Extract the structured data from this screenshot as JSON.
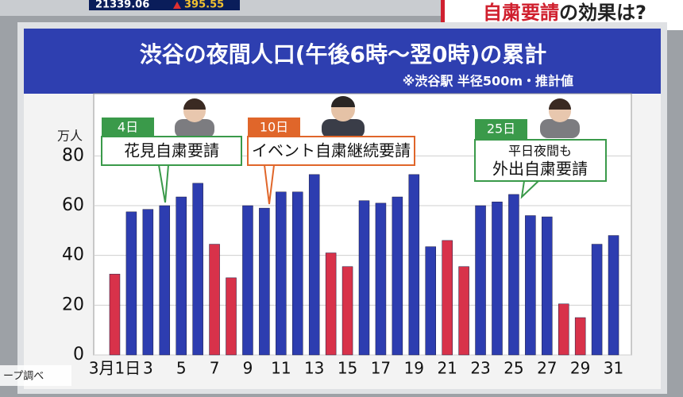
{
  "ticker": {
    "index": "21339.06",
    "change": "395.55"
  },
  "header": {
    "title_highlight": "自粛要請",
    "title_rest": "の効果は?"
  },
  "source": "ープ調べ",
  "chart_data": {
    "type": "bar",
    "title": "渋谷の夜間人口(午後6時～翌0時)の累計",
    "subtitle": "※渋谷駅 半径500m・推計値",
    "y_label": "万人",
    "categories": [
      "3月1日",
      null,
      "3",
      null,
      "5",
      null,
      "7",
      null,
      "9",
      null,
      "11",
      null,
      "13",
      null,
      "15",
      null,
      "17",
      null,
      "19",
      null,
      "21",
      null,
      "23",
      null,
      "25",
      null,
      "27",
      null,
      "29",
      null,
      "31"
    ],
    "values": [
      32.5,
      57.5,
      58.5,
      60,
      63.5,
      69,
      44.5,
      31,
      60,
      59,
      65.5,
      65.5,
      72.5,
      41,
      35.5,
      62,
      61,
      63.5,
      72.5,
      43.5,
      46,
      35.5,
      60,
      61.5,
      64.5,
      56,
      55.5,
      20.5,
      15,
      44.5,
      48
    ],
    "colors": [
      "#d8324a",
      "#2d3db0",
      "#2d3db0",
      "#2d3db0",
      "#2d3db0",
      "#2d3db0",
      "#d8324a",
      "#d8324a",
      "#2d3db0",
      "#2d3db0",
      "#2d3db0",
      "#2d3db0",
      "#2d3db0",
      "#d8324a",
      "#d8324a",
      "#2d3db0",
      "#2d3db0",
      "#2d3db0",
      "#2d3db0",
      "#2d3db0",
      "#d8324a",
      "#d8324a",
      "#2d3db0",
      "#2d3db0",
      "#2d3db0",
      "#2d3db0",
      "#2d3db0",
      "#d8324a",
      "#d8324a",
      "#2d3db0",
      "#2d3db0"
    ],
    "ylim": [
      0,
      105
    ],
    "yticks": [
      0,
      20,
      40,
      60,
      80
    ],
    "grid": true,
    "annotations": [
      {
        "date": "4日",
        "text": "花見自粛要請"
      },
      {
        "date": "10日",
        "text": "イベント自粛継続要請"
      },
      {
        "date": "25日",
        "line1": "平日夜間も",
        "line2": "外出自粛要請"
      }
    ]
  }
}
